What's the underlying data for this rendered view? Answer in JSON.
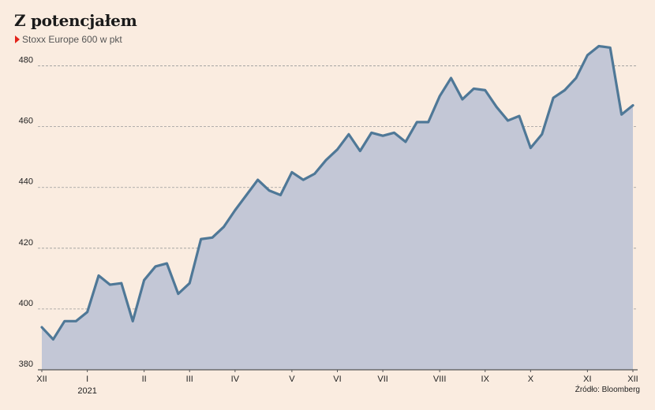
{
  "title": "Z potencjałem",
  "subtitle": "Stoxx Europe 600 w pkt",
  "source": "Źródło: Bloomberg",
  "colors": {
    "line": "#4f7897",
    "fill": "#c3c7d6",
    "marker": "#e2231a",
    "grid": "#9a9a9a"
  },
  "chart_data": {
    "type": "area",
    "title": "Z potencjałem",
    "subtitle": "Stoxx Europe 600 w pkt",
    "ylim": [
      380,
      490
    ],
    "yticks": [
      380,
      400,
      420,
      440,
      460,
      480
    ],
    "grid": "horizontal dashed",
    "xticks": [
      {
        "label": "XII",
        "x": 0
      },
      {
        "label": "I",
        "x": 4
      },
      {
        "label": "II",
        "x": 9
      },
      {
        "label": "III",
        "x": 13
      },
      {
        "label": "IV",
        "x": 17
      },
      {
        "label": "V",
        "x": 22
      },
      {
        "label": "VI",
        "x": 26
      },
      {
        "label": "VII",
        "x": 30
      },
      {
        "label": "VIII",
        "x": 35
      },
      {
        "label": "IX",
        "x": 39
      },
      {
        "label": "X",
        "x": 43
      },
      {
        "label": "XI",
        "x": 48
      },
      {
        "label": "XII",
        "x": 52
      }
    ],
    "year_label": {
      "label": "2021",
      "x": 4
    },
    "values": [
      394,
      390,
      396,
      396,
      399,
      411,
      408,
      408.5,
      396,
      409.5,
      414,
      415,
      405,
      408.5,
      423,
      423.5,
      427,
      432.5,
      437.5,
      442.5,
      439,
      437.5,
      445,
      442.5,
      444.5,
      449,
      452.5,
      457.5,
      452,
      458,
      457,
      458,
      455,
      461.5,
      461.5,
      470,
      476,
      469,
      472.5,
      472,
      466.5,
      462,
      463.5,
      453,
      457.5,
      469.5,
      472,
      476,
      483.5,
      486.5,
      486,
      464,
      467
    ]
  }
}
